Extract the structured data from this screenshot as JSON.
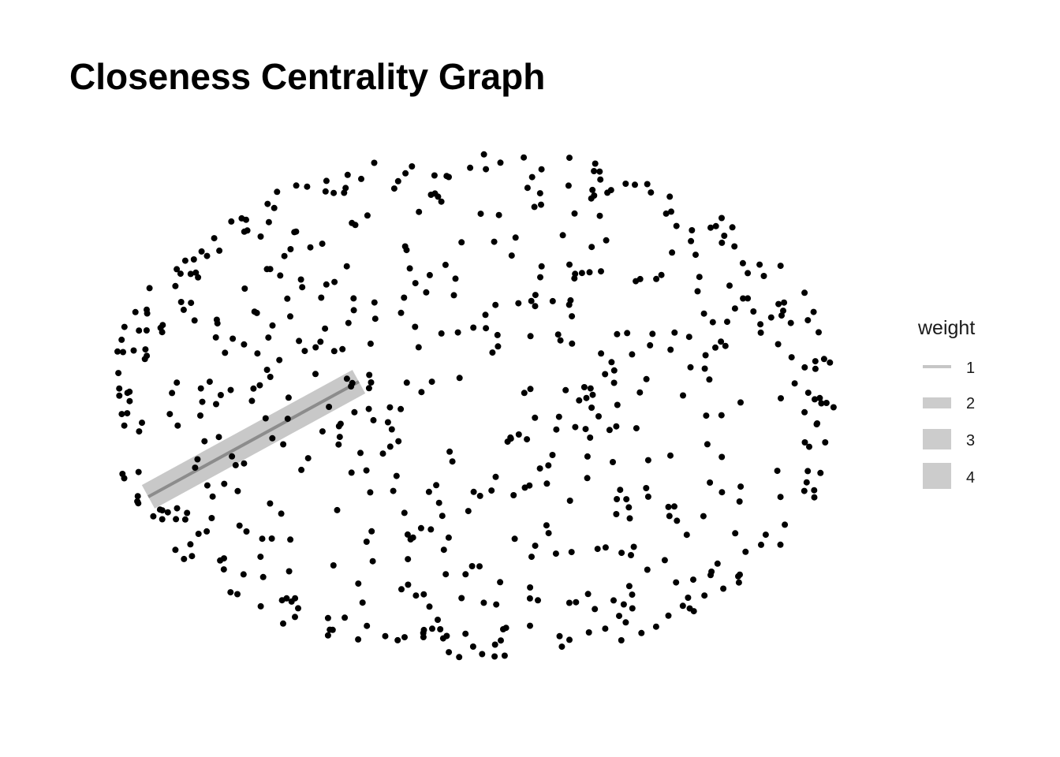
{
  "title": "Closeness Centrality Graph",
  "legend": {
    "title": "weight",
    "items": [
      {
        "label": "1",
        "weight": 1
      },
      {
        "label": "2",
        "weight": 2
      },
      {
        "label": "3",
        "weight": 3
      },
      {
        "label": "4",
        "weight": 4
      }
    ]
  },
  "colors": {
    "node": "#000000",
    "edge_core": "#8c8c8c",
    "edge_band": "#c8c8c8",
    "legend_key": "#cccccc"
  },
  "graph": {
    "layout": "circle-pack",
    "node_count": 600,
    "edges": [
      {
        "from_node": "left-rim",
        "to_node": "center-left",
        "weight": 4
      }
    ]
  }
}
